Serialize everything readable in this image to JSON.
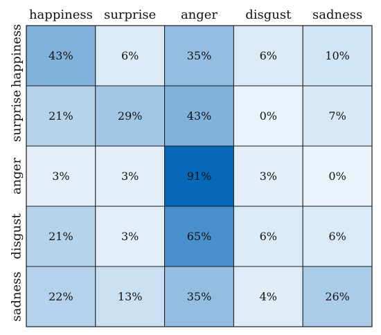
{
  "chart_data": {
    "type": "heatmap",
    "title": "",
    "xlabel": "",
    "ylabel": "",
    "columns": [
      "happiness",
      "surprise",
      "anger",
      "disgust",
      "sadness"
    ],
    "rows": [
      "happiness",
      "surprise",
      "anger",
      "disgust",
      "sadness"
    ],
    "values": [
      [
        43,
        6,
        35,
        6,
        10
      ],
      [
        21,
        29,
        43,
        0,
        7
      ],
      [
        3,
        3,
        91,
        3,
        0
      ],
      [
        21,
        3,
        65,
        6,
        6
      ],
      [
        22,
        13,
        35,
        4,
        26
      ]
    ],
    "cell_labels": [
      [
        "43%",
        "6%",
        "35%",
        "6%",
        "10%"
      ],
      [
        "21%",
        "29%",
        "43%",
        "0%",
        "7%"
      ],
      [
        "3%",
        "3%",
        "91%",
        "3%",
        "0%"
      ],
      [
        "21%",
        "3%",
        "65%",
        "6%",
        "6%"
      ],
      [
        "22%",
        "13%",
        "35%",
        "4%",
        "26%"
      ]
    ],
    "value_range": [
      0,
      91
    ],
    "colormap": {
      "low": "#eaf3fb",
      "high": "#0969b9"
    },
    "legend": false,
    "grid": true
  }
}
